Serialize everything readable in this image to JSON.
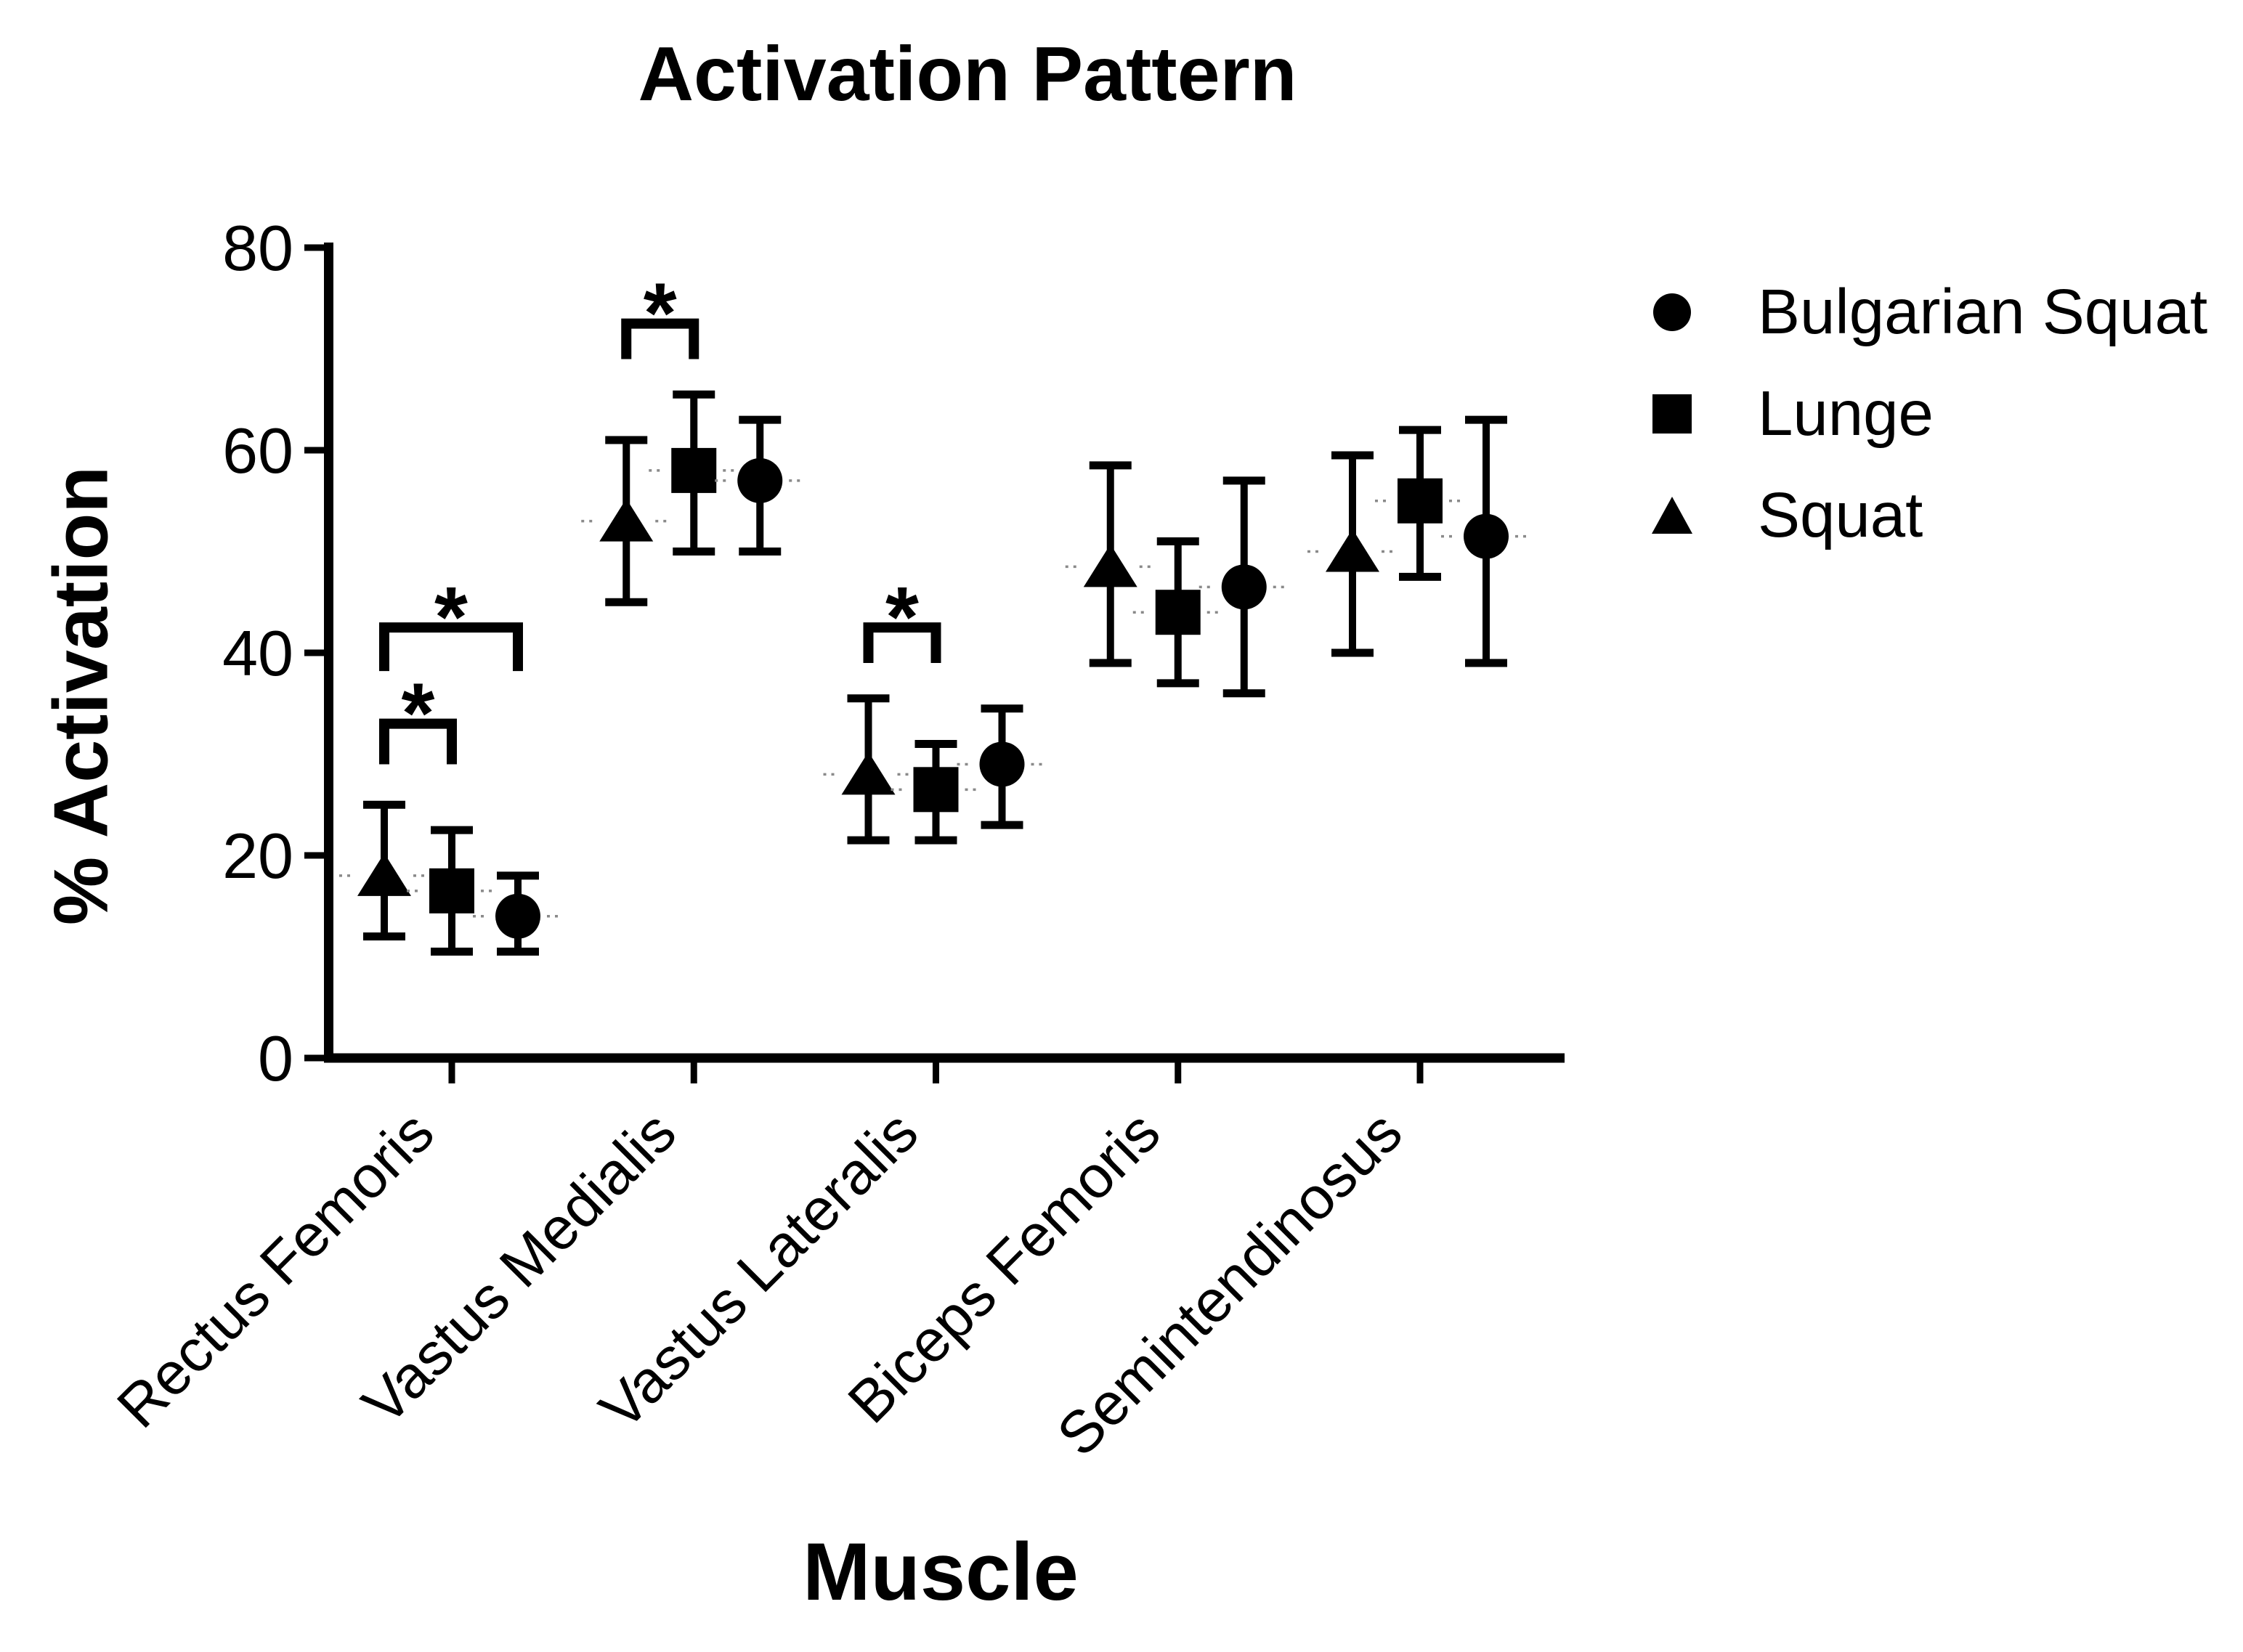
{
  "colors": {
    "foreground": "#000000",
    "background": "#ffffff",
    "mean_dash": "#8a8a8a"
  },
  "chart_data": {
    "type": "scatter",
    "title": "Activation Pattern",
    "xlabel": "Muscle",
    "ylabel": "% Activation",
    "ylim": [
      0,
      80
    ],
    "yticks": [
      0,
      20,
      40,
      60,
      80
    ],
    "grid": false,
    "legend_position": "right",
    "categories": [
      "Rectus Femoris",
      "Vastus Medialis",
      "Vastus Lateralis",
      "Biceps Femoris",
      "Semintendinosus"
    ],
    "series": [
      {
        "name": "Squat",
        "marker": "triangle",
        "values": [
          18,
          53,
          28,
          48.5,
          50
        ],
        "upper": [
          25,
          61,
          35.5,
          58.5,
          59.5
        ],
        "lower": [
          12,
          45,
          21.5,
          39,
          40
        ]
      },
      {
        "name": "Lunge",
        "marker": "square",
        "values": [
          16.5,
          58,
          26.5,
          44,
          55
        ],
        "upper": [
          22.5,
          65.5,
          31,
          51,
          62
        ],
        "lower": [
          10.5,
          50,
          21.5,
          37,
          47.5
        ]
      },
      {
        "name": "Bulgarian Squat",
        "marker": "circle",
        "values": [
          14,
          57,
          29,
          46.5,
          51.5
        ],
        "upper": [
          18,
          63,
          34.5,
          57,
          63
        ],
        "lower": [
          10.5,
          50,
          23,
          36,
          39
        ]
      }
    ],
    "significance": [
      {
        "category": 0,
        "from": "Squat",
        "to": "Lunge",
        "bar": 33,
        "legs": 29,
        "label": "*"
      },
      {
        "category": 0,
        "from": "Squat",
        "to": "Bulgarian Squat",
        "bar": 42.5,
        "legs": 38.2,
        "label": "*"
      },
      {
        "category": 1,
        "from": "Squat",
        "to": "Lunge",
        "bar": 72.5,
        "legs": 69,
        "label": "*"
      },
      {
        "category": 2,
        "from": "Squat",
        "to": "Lunge",
        "bar": 42.5,
        "legs": 39,
        "label": "*"
      }
    ],
    "legend": [
      {
        "marker": "circle",
        "label": "Bulgarian Squat"
      },
      {
        "marker": "square",
        "label": "Lunge"
      },
      {
        "marker": "triangle",
        "label": "Squat"
      }
    ]
  }
}
